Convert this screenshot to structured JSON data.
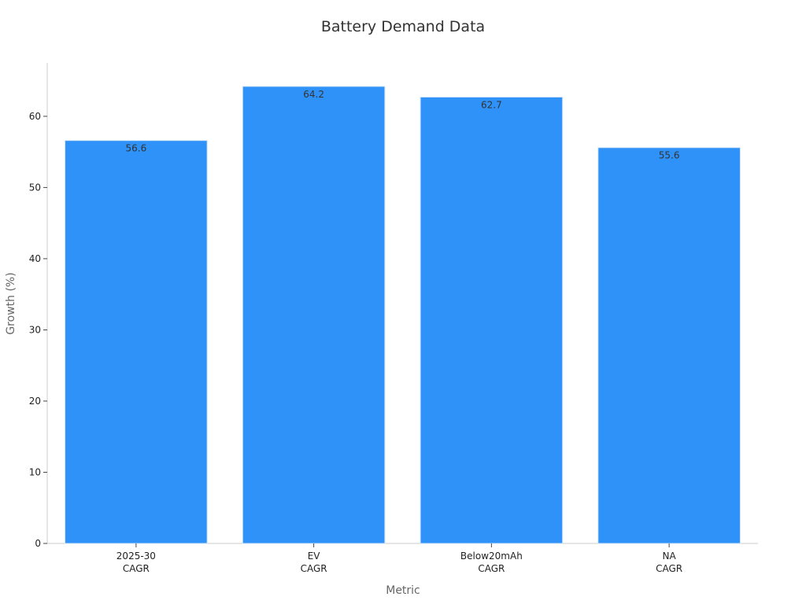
{
  "chart_data": {
    "type": "bar",
    "title": "Battery Demand Data",
    "x_label": "Metric",
    "y_label": "Growth (%)",
    "categories": [
      "2025-30\nCAGR",
      "EV\nCAGR",
      "Below20mAh\nCAGR",
      "NA\nCAGR"
    ],
    "values": [
      56.6,
      64.2,
      62.7,
      55.6
    ],
    "color": "#2f92f8",
    "ylim": [
      0,
      67.5
    ],
    "yticks": [
      0,
      10,
      20,
      30,
      40,
      50,
      60
    ],
    "grid": false
  }
}
